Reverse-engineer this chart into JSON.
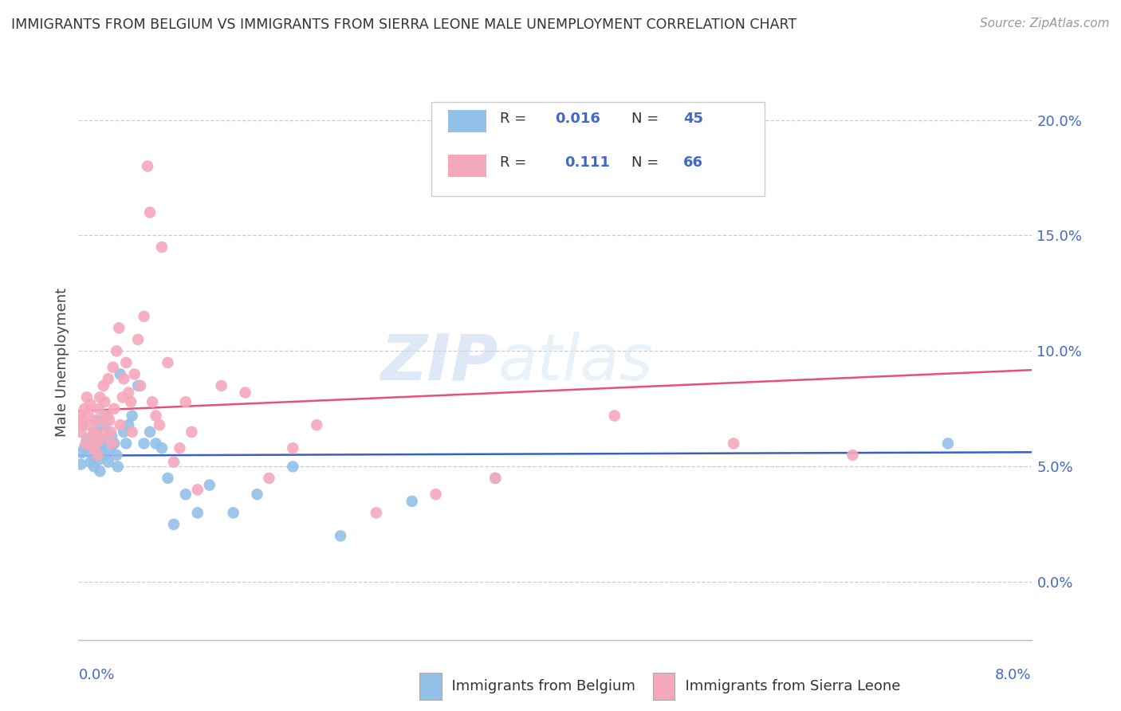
{
  "title": "IMMIGRANTS FROM BELGIUM VS IMMIGRANTS FROM SIERRA LEONE MALE UNEMPLOYMENT CORRELATION CHART",
  "source": "Source: ZipAtlas.com",
  "ylabel": "Male Unemployment",
  "xlim": [
    0.0,
    0.08
  ],
  "ylim": [
    -0.025,
    0.215
  ],
  "ytick_vals": [
    0.0,
    0.05,
    0.1,
    0.15,
    0.2
  ],
  "ytick_labels": [
    "0.0%",
    "5.0%",
    "10.0%",
    "15.0%",
    "20.0%"
  ],
  "belgium_color": "#92c0e8",
  "sierra_leone_color": "#f5a8bc",
  "belgium_line_color": "#3a5fcd",
  "sierra_leone_line_color": "#e8507a",
  "legend_blue_r": "R = 0.016",
  "legend_blue_n": "N = 45",
  "legend_pink_r": "R =   0.111",
  "legend_pink_n": "N = 66",
  "watermark_zip": "ZIP",
  "watermark_atlas": "atlas",
  "belgium_x": [
    0.0002,
    0.0003,
    0.0005,
    0.0007,
    0.0008,
    0.001,
    0.0012,
    0.0013,
    0.0015,
    0.0016,
    0.0017,
    0.0018,
    0.0019,
    0.002,
    0.0021,
    0.0022,
    0.0023,
    0.0025,
    0.0027,
    0.0028,
    0.003,
    0.0032,
    0.0033,
    0.0035,
    0.0038,
    0.004,
    0.0042,
    0.0045,
    0.005,
    0.0055,
    0.006,
    0.0065,
    0.007,
    0.0075,
    0.008,
    0.009,
    0.01,
    0.011,
    0.013,
    0.015,
    0.018,
    0.022,
    0.028,
    0.035,
    0.073
  ],
  "belgium_y": [
    0.051,
    0.056,
    0.058,
    0.062,
    0.06,
    0.052,
    0.055,
    0.05,
    0.065,
    0.07,
    0.053,
    0.048,
    0.057,
    0.06,
    0.068,
    0.055,
    0.072,
    0.052,
    0.058,
    0.063,
    0.06,
    0.055,
    0.05,
    0.09,
    0.065,
    0.06,
    0.068,
    0.072,
    0.085,
    0.06,
    0.065,
    0.06,
    0.058,
    0.045,
    0.025,
    0.038,
    0.03,
    0.042,
    0.03,
    0.038,
    0.05,
    0.02,
    0.035,
    0.045,
    0.06
  ],
  "sierra_leone_x": [
    0.0001,
    0.0002,
    0.0003,
    0.0004,
    0.0005,
    0.0006,
    0.0007,
    0.0008,
    0.0009,
    0.001,
    0.0011,
    0.0012,
    0.0013,
    0.0014,
    0.0015,
    0.0016,
    0.0017,
    0.0018,
    0.0019,
    0.002,
    0.0021,
    0.0022,
    0.0023,
    0.0024,
    0.0025,
    0.0026,
    0.0027,
    0.0028,
    0.0029,
    0.003,
    0.0032,
    0.0034,
    0.0035,
    0.0037,
    0.0038,
    0.004,
    0.0042,
    0.0044,
    0.0045,
    0.0047,
    0.005,
    0.0052,
    0.0055,
    0.0058,
    0.006,
    0.0062,
    0.0065,
    0.0068,
    0.007,
    0.0075,
    0.008,
    0.0085,
    0.009,
    0.0095,
    0.01,
    0.012,
    0.014,
    0.016,
    0.018,
    0.02,
    0.025,
    0.03,
    0.035,
    0.045,
    0.055,
    0.065
  ],
  "sierra_leone_y": [
    0.072,
    0.065,
    0.068,
    0.07,
    0.075,
    0.06,
    0.08,
    0.073,
    0.068,
    0.077,
    0.063,
    0.058,
    0.065,
    0.07,
    0.06,
    0.055,
    0.075,
    0.08,
    0.062,
    0.07,
    0.085,
    0.078,
    0.065,
    0.072,
    0.088,
    0.07,
    0.065,
    0.06,
    0.093,
    0.075,
    0.1,
    0.11,
    0.068,
    0.08,
    0.088,
    0.095,
    0.082,
    0.078,
    0.065,
    0.09,
    0.105,
    0.085,
    0.115,
    0.18,
    0.16,
    0.078,
    0.072,
    0.068,
    0.145,
    0.095,
    0.052,
    0.058,
    0.078,
    0.065,
    0.04,
    0.085,
    0.082,
    0.045,
    0.058,
    0.068,
    0.03,
    0.038,
    0.045,
    0.072,
    0.06,
    0.055
  ]
}
